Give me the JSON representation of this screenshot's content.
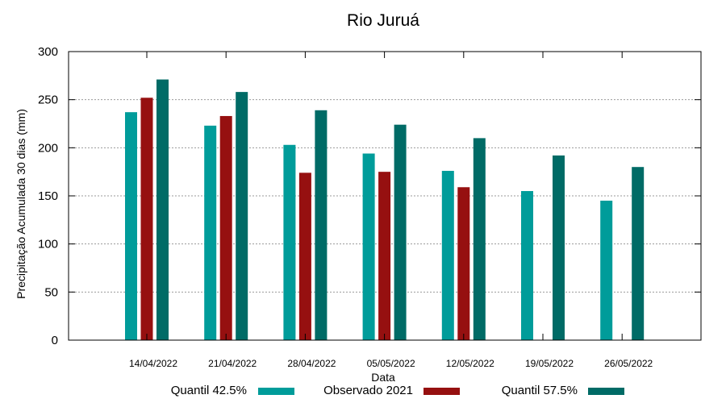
{
  "chart_data": {
    "type": "bar",
    "title": "Rio Juruá",
    "xlabel": "Data",
    "ylabel": "Precipitação Acumulada 30 dias (mm)",
    "ylim": [
      0,
      300
    ],
    "yticks": [
      0,
      50,
      100,
      150,
      200,
      250,
      300
    ],
    "grid": true,
    "legend_position": "bottom",
    "categories": [
      "14/04/2022",
      "21/04/2022",
      "28/04/2022",
      "05/05/2022",
      "12/05/2022",
      "19/05/2022",
      "26/05/2022"
    ],
    "series": [
      {
        "name": "Quantil 42.5%",
        "color": "#009c9a",
        "values": [
          237,
          223,
          203,
          194,
          176,
          155,
          145
        ]
      },
      {
        "name": "Observado 2021",
        "color": "#961010",
        "values": [
          252,
          233,
          174,
          175,
          159,
          null,
          null
        ]
      },
      {
        "name": "Quantil 57.5%",
        "color": "#006b66",
        "values": [
          271,
          258,
          239,
          224,
          210,
          192,
          180
        ]
      }
    ]
  }
}
